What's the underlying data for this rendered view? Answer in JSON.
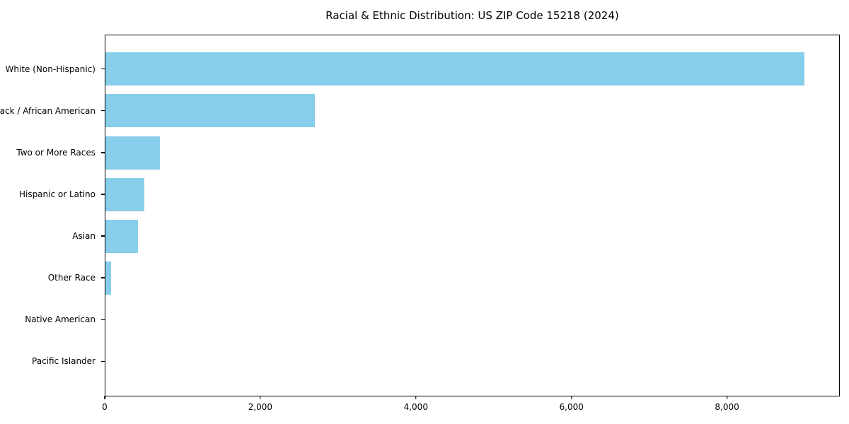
{
  "figure": {
    "background": "#ffffff",
    "frame_color": "#000000"
  },
  "chart_data": {
    "type": "bar",
    "orientation": "horizontal",
    "title": "Racial & Ethnic Distribution: US ZIP Code 15218 (2024)",
    "xlabel": "",
    "ylabel": "",
    "categories": [
      "White (Non-Hispanic)",
      "Black / African American",
      "Two or More Races",
      "Hispanic or Latino",
      "Asian",
      "Other Race",
      "Native American",
      "Pacific Islander"
    ],
    "values": [
      9000,
      2700,
      700,
      500,
      420,
      75,
      0,
      0
    ],
    "bar_color": "#87CEEB",
    "xlim": [
      0,
      9450
    ],
    "x_ticks": [
      0,
      2000,
      4000,
      6000,
      8000
    ],
    "x_tick_labels": [
      "0",
      "2,000",
      "4,000",
      "6,000",
      "8,000"
    ],
    "grid": false,
    "legend": "none"
  }
}
